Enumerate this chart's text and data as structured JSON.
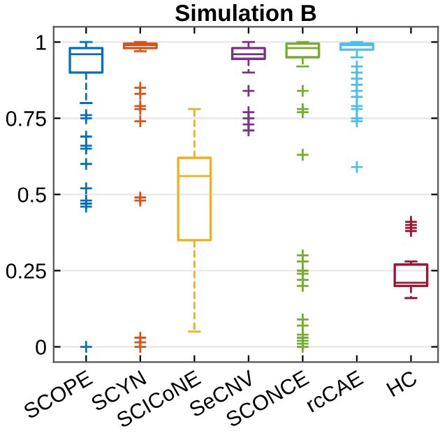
{
  "chart_data": {
    "type": "box",
    "title": "Simulation B",
    "categories": [
      "SCOPE",
      "SCYN",
      "SCICoNE",
      "SeCNV",
      "SCONCE",
      "rcCAE",
      "HC"
    ],
    "colors": [
      "#0072bd",
      "#d95319",
      "#edb120",
      "#7e2f8e",
      "#77ac30",
      "#4dbeee",
      "#a2142f"
    ],
    "boxes": [
      {
        "low": 0.8,
        "q1": 0.9,
        "median": 0.96,
        "q3": 0.98,
        "high": 1.0,
        "outliers": [
          0.76,
          0.75,
          0.69,
          0.66,
          0.65,
          0.6,
          0.52,
          0.48,
          0.47,
          0.46,
          0
        ]
      },
      {
        "low": 0.97,
        "q1": 0.98,
        "median": 0.99,
        "q3": 0.995,
        "high": 1.0,
        "outliers": [
          0.85,
          0.83,
          0.79,
          0.78,
          0.74,
          0.49,
          0.48,
          0.03,
          0.015,
          0
        ]
      },
      {
        "low": 0.05,
        "q1": 0.35,
        "median": 0.56,
        "q3": 0.62,
        "high": 0.78
      },
      {
        "low": 0.9,
        "q1": 0.945,
        "median": 0.96,
        "q3": 0.98,
        "high": 1.0,
        "outliers": [
          0.84,
          0.77,
          0.75,
          0.73,
          0.71
        ]
      },
      {
        "low": 0.92,
        "q1": 0.95,
        "median": 0.98,
        "q3": 0.995,
        "high": 1.0,
        "outliers": [
          0.84,
          0.78,
          0.77,
          0.63,
          0.3,
          0.28,
          0.25,
          0.24,
          0.22,
          0.2,
          0.09,
          0.07,
          0.04,
          0.03,
          0.02,
          0.01,
          0
        ]
      },
      {
        "low": 0.95,
        "q1": 0.975,
        "median": 0.99,
        "q3": 0.995,
        "high": 1.0,
        "outliers": [
          0.92,
          0.9,
          0.88,
          0.86,
          0.84,
          0.82,
          0.79,
          0.78,
          0.75,
          0.74,
          0.59
        ]
      },
      {
        "low": 0.16,
        "q1": 0.2,
        "median": 0.21,
        "q3": 0.27,
        "high": 0.28,
        "outliers": [
          0.41,
          0.4,
          0.39,
          0.38
        ]
      }
    ],
    "ylim": [
      -0.05,
      1.05
    ],
    "yticks": [
      0,
      0.25,
      0.5,
      0.75,
      1
    ],
    "grid": "y",
    "marker": "cross"
  }
}
